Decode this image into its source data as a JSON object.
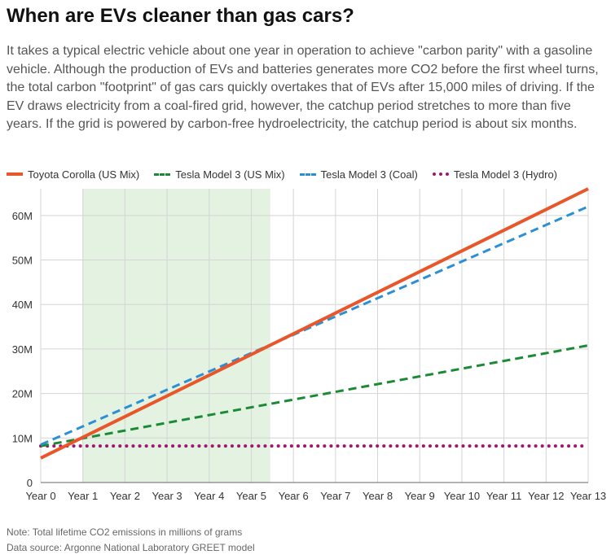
{
  "title": "When are EVs cleaner than gas cars?",
  "subtitle": "It takes a typical electric vehicle about one year in operation to achieve \"carbon parity\" with a gasoline vehicle. Although the production of EVs and batteries generates more CO2 before the first wheel turns, the total carbon \"footprint\" of gas cars quickly overtakes that of EVs after 15,000 miles of driving. If the EV draws electricity from a coal-fired grid, however, the catchup period stretches to more than five years. If the grid is powered by carbon-free hydroelectricity, the catchup period is about six months.",
  "notes": {
    "note": "Note: Total lifetime CO2 emissions in millions of grams",
    "source": "Data source: Argonne National Laboratory GREET model"
  },
  "chart_data": {
    "type": "line",
    "title": "When are EVs cleaner than gas cars?",
    "xlabel": "",
    "ylabel": "",
    "x": [
      0,
      13
    ],
    "x_tick_labels": [
      "Year 0",
      "Year 1",
      "Year 2",
      "Year 3",
      "Year 4",
      "Year 5",
      "Year 6",
      "Year 7",
      "Year 8",
      "Year 9",
      "Year 10",
      "Year 11",
      "Year 12",
      "Year 13"
    ],
    "y_ticks": [
      0,
      10,
      20,
      30,
      40,
      50,
      60
    ],
    "y_tick_labels": [
      "0",
      "10M",
      "20M",
      "30M",
      "40M",
      "50M",
      "60M"
    ],
    "ylim": [
      0,
      66
    ],
    "xlim": [
      0,
      13
    ],
    "shaded_region": {
      "from": 1,
      "to": 5.45,
      "color": "#e3f2e1"
    },
    "grid": true,
    "legend_position": "top-left",
    "series": [
      {
        "name": "Toyota Corolla (US Mix)",
        "x": [
          0,
          13
        ],
        "values": [
          5.5,
          66
        ],
        "color": "#e8562a",
        "style": "solid"
      },
      {
        "name": "Tesla Model 3 (US Mix)",
        "x": [
          0,
          13
        ],
        "values": [
          8.2,
          30.8
        ],
        "color": "#1b8a35",
        "style": "dashed"
      },
      {
        "name": "Tesla Model 3 (Coal)",
        "x": [
          0,
          13
        ],
        "values": [
          8.5,
          62
        ],
        "color": "#2b8fd6",
        "style": "dashed"
      },
      {
        "name": "Tesla Model 3 (Hydro)",
        "x": [
          0,
          13
        ],
        "values": [
          8.2,
          8.2
        ],
        "color": "#a0176f",
        "style": "dotted"
      }
    ]
  }
}
